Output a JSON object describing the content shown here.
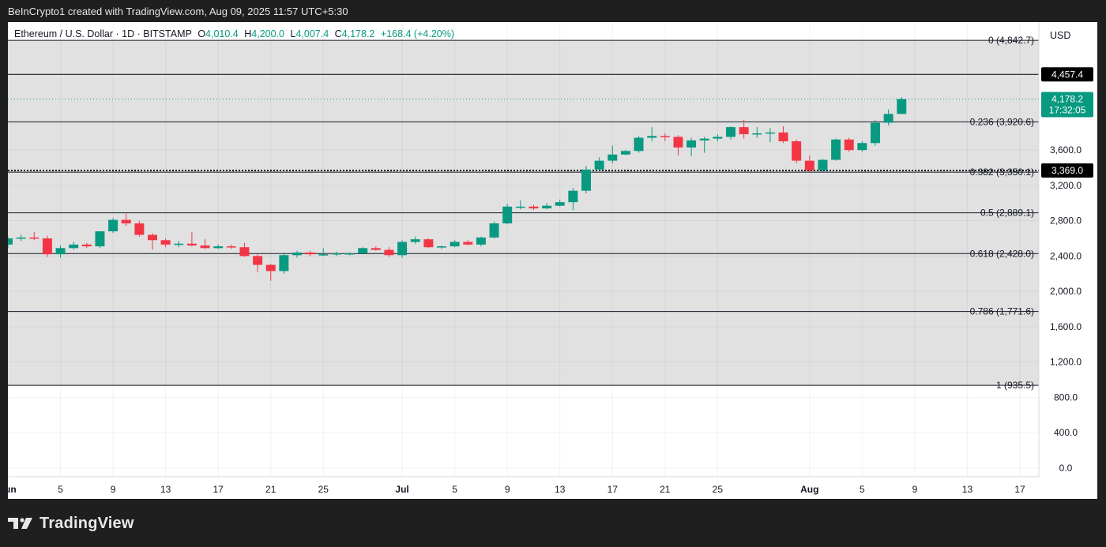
{
  "header": {
    "credit": "BeInCrypto1 created with TradingView.com, Aug 09, 2025 11:57 UTC+5:30"
  },
  "legend": {
    "symbol": "Ethereum / U.S. Dollar · 1D · BITSTAMP",
    "open_label": "O",
    "open": "4,010.4",
    "high_label": "H",
    "high": "4,200.0",
    "low_label": "L",
    "low": "4,007.4",
    "close_label": "C",
    "close": "4,178.2",
    "change": "+168.4 (+4.20%)"
  },
  "currency": "USD",
  "footer": {
    "brand": "TradingView"
  },
  "colors": {
    "up": "#089981",
    "down": "#f23645",
    "fib_zone": "#e1e1e1",
    "fib_line": "#131722",
    "price_tag": "#089981",
    "level_tag": "#000000"
  },
  "chart_data": {
    "type": "candlestick",
    "title": "Ethereum / U.S. Dollar · 1D · BITSTAMP",
    "xlabel": "",
    "ylabel": "",
    "ylim": [
      -100,
      5050
    ],
    "y_ticks": [
      {
        "value": 0,
        "label": "0.0"
      },
      {
        "value": 400,
        "label": "400.0"
      },
      {
        "value": 800,
        "label": "800.0"
      },
      {
        "value": 1200,
        "label": "1,200.0"
      },
      {
        "value": 1600,
        "label": "1,600.0"
      },
      {
        "value": 2000,
        "label": "2,000.0"
      },
      {
        "value": 2400,
        "label": "2,400.0"
      },
      {
        "value": 2800,
        "label": "2,800.0"
      },
      {
        "value": 3200,
        "label": "3,200.0"
      },
      {
        "value": 3600,
        "label": "3,600.0"
      }
    ],
    "x_start_date": "2025-06-01",
    "x_end_date": "2025-08-17",
    "x_ticks": [
      {
        "date": "2025-06-01",
        "label": "Jun"
      },
      {
        "date": "2025-06-05",
        "label": "5"
      },
      {
        "date": "2025-06-09",
        "label": "9"
      },
      {
        "date": "2025-06-13",
        "label": "13"
      },
      {
        "date": "2025-06-17",
        "label": "17"
      },
      {
        "date": "2025-06-21",
        "label": "21"
      },
      {
        "date": "2025-06-25",
        "label": "25"
      },
      {
        "date": "2025-07-01",
        "label": "Jul"
      },
      {
        "date": "2025-07-05",
        "label": "5"
      },
      {
        "date": "2025-07-09",
        "label": "9"
      },
      {
        "date": "2025-07-13",
        "label": "13"
      },
      {
        "date": "2025-07-17",
        "label": "17"
      },
      {
        "date": "2025-07-21",
        "label": "21"
      },
      {
        "date": "2025-07-25",
        "label": "25"
      },
      {
        "date": "2025-08-01",
        "label": "Aug"
      },
      {
        "date": "2025-08-05",
        "label": "5"
      },
      {
        "date": "2025-08-09",
        "label": "9"
      },
      {
        "date": "2025-08-13",
        "label": "13"
      },
      {
        "date": "2025-08-17",
        "label": "17"
      }
    ],
    "fib_levels": [
      {
        "ratio": "0",
        "value": 4842.7,
        "label": "0 (4,842.7)"
      },
      {
        "ratio": "0.236",
        "value": 3920.6,
        "label": "0.236 (3,920.6)"
      },
      {
        "ratio": "0.382",
        "value": 3350.1,
        "label": "0.382 (3,350.1)"
      },
      {
        "ratio": "0.5",
        "value": 2889.1,
        "label": "0.5 (2,889.1)"
      },
      {
        "ratio": "0.618",
        "value": 2428.0,
        "label": "0.618 (2,428.0)"
      },
      {
        "ratio": "0.786",
        "value": 1771.6,
        "label": "0.786 (1,771.6)"
      },
      {
        "ratio": "1",
        "value": 935.5,
        "label": "1 (935.5)"
      }
    ],
    "horizontal_levels": [
      {
        "value": 4457.4,
        "label": "4,457.4",
        "style": "solid"
      },
      {
        "value": 3369.0,
        "label": "3,369.0",
        "style": "dotted"
      }
    ],
    "last_price": {
      "value": 4178.2,
      "label": "4,178.2",
      "countdown": "17:32:05"
    },
    "candles": [
      {
        "date": "2025-05-31",
        "o": 2530,
        "h": 2560,
        "l": 2480,
        "c": 2530
      },
      {
        "date": "2025-06-01",
        "o": 2530,
        "h": 2620,
        "l": 2490,
        "c": 2600
      },
      {
        "date": "2025-06-02",
        "o": 2600,
        "h": 2640,
        "l": 2570,
        "c": 2610
      },
      {
        "date": "2025-06-03",
        "o": 2610,
        "h": 2670,
        "l": 2580,
        "c": 2600
      },
      {
        "date": "2025-06-04",
        "o": 2600,
        "h": 2630,
        "l": 2390,
        "c": 2420
      },
      {
        "date": "2025-06-05",
        "o": 2420,
        "h": 2520,
        "l": 2380,
        "c": 2490
      },
      {
        "date": "2025-06-06",
        "o": 2490,
        "h": 2560,
        "l": 2470,
        "c": 2530
      },
      {
        "date": "2025-06-07",
        "o": 2530,
        "h": 2550,
        "l": 2490,
        "c": 2510
      },
      {
        "date": "2025-06-08",
        "o": 2510,
        "h": 2680,
        "l": 2490,
        "c": 2680
      },
      {
        "date": "2025-06-09",
        "o": 2680,
        "h": 2830,
        "l": 2660,
        "c": 2810
      },
      {
        "date": "2025-06-10",
        "o": 2810,
        "h": 2880,
        "l": 2740,
        "c": 2770
      },
      {
        "date": "2025-06-11",
        "o": 2770,
        "h": 2800,
        "l": 2620,
        "c": 2640
      },
      {
        "date": "2025-06-12",
        "o": 2640,
        "h": 2660,
        "l": 2470,
        "c": 2580
      },
      {
        "date": "2025-06-13",
        "o": 2580,
        "h": 2600,
        "l": 2500,
        "c": 2530
      },
      {
        "date": "2025-06-14",
        "o": 2530,
        "h": 2570,
        "l": 2500,
        "c": 2540
      },
      {
        "date": "2025-06-15",
        "o": 2540,
        "h": 2670,
        "l": 2510,
        "c": 2520
      },
      {
        "date": "2025-06-16",
        "o": 2520,
        "h": 2590,
        "l": 2480,
        "c": 2490
      },
      {
        "date": "2025-06-17",
        "o": 2490,
        "h": 2530,
        "l": 2480,
        "c": 2510
      },
      {
        "date": "2025-06-18",
        "o": 2510,
        "h": 2530,
        "l": 2480,
        "c": 2500
      },
      {
        "date": "2025-06-19",
        "o": 2500,
        "h": 2550,
        "l": 2390,
        "c": 2400
      },
      {
        "date": "2025-06-20",
        "o": 2400,
        "h": 2420,
        "l": 2220,
        "c": 2300
      },
      {
        "date": "2025-06-21",
        "o": 2300,
        "h": 2310,
        "l": 2120,
        "c": 2230
      },
      {
        "date": "2025-06-22",
        "o": 2230,
        "h": 2440,
        "l": 2200,
        "c": 2410
      },
      {
        "date": "2025-06-23",
        "o": 2410,
        "h": 2460,
        "l": 2380,
        "c": 2440
      },
      {
        "date": "2025-06-24",
        "o": 2440,
        "h": 2460,
        "l": 2400,
        "c": 2420
      },
      {
        "date": "2025-06-25",
        "o": 2420,
        "h": 2490,
        "l": 2400,
        "c": 2420
      },
      {
        "date": "2025-06-26",
        "o": 2420,
        "h": 2450,
        "l": 2400,
        "c": 2430
      },
      {
        "date": "2025-06-27",
        "o": 2430,
        "h": 2440,
        "l": 2410,
        "c": 2430
      },
      {
        "date": "2025-06-28",
        "o": 2430,
        "h": 2500,
        "l": 2420,
        "c": 2490
      },
      {
        "date": "2025-06-29",
        "o": 2490,
        "h": 2510,
        "l": 2460,
        "c": 2470
      },
      {
        "date": "2025-06-30",
        "o": 2470,
        "h": 2500,
        "l": 2390,
        "c": 2410
      },
      {
        "date": "2025-07-01",
        "o": 2410,
        "h": 2580,
        "l": 2380,
        "c": 2560
      },
      {
        "date": "2025-07-02",
        "o": 2560,
        "h": 2620,
        "l": 2540,
        "c": 2590
      },
      {
        "date": "2025-07-03",
        "o": 2590,
        "h": 2600,
        "l": 2490,
        "c": 2500
      },
      {
        "date": "2025-07-04",
        "o": 2500,
        "h": 2520,
        "l": 2480,
        "c": 2510
      },
      {
        "date": "2025-07-05",
        "o": 2510,
        "h": 2580,
        "l": 2500,
        "c": 2560
      },
      {
        "date": "2025-07-06",
        "o": 2560,
        "h": 2580,
        "l": 2520,
        "c": 2530
      },
      {
        "date": "2025-07-07",
        "o": 2530,
        "h": 2620,
        "l": 2510,
        "c": 2610
      },
      {
        "date": "2025-07-08",
        "o": 2610,
        "h": 2790,
        "l": 2600,
        "c": 2770
      },
      {
        "date": "2025-07-09",
        "o": 2770,
        "h": 2990,
        "l": 2760,
        "c": 2960
      },
      {
        "date": "2025-07-10",
        "o": 2960,
        "h": 3030,
        "l": 2930,
        "c": 2960
      },
      {
        "date": "2025-07-11",
        "o": 2960,
        "h": 2980,
        "l": 2920,
        "c": 2940
      },
      {
        "date": "2025-07-12",
        "o": 2940,
        "h": 3000,
        "l": 2930,
        "c": 2970
      },
      {
        "date": "2025-07-13",
        "o": 2970,
        "h": 3040,
        "l": 2960,
        "c": 3010
      },
      {
        "date": "2025-07-14",
        "o": 3010,
        "h": 3170,
        "l": 2920,
        "c": 3140
      },
      {
        "date": "2025-07-15",
        "o": 3140,
        "h": 3420,
        "l": 3110,
        "c": 3380
      },
      {
        "date": "2025-07-16",
        "o": 3380,
        "h": 3520,
        "l": 3360,
        "c": 3480
      },
      {
        "date": "2025-07-17",
        "o": 3480,
        "h": 3650,
        "l": 3450,
        "c": 3550
      },
      {
        "date": "2025-07-18",
        "o": 3550,
        "h": 3600,
        "l": 3540,
        "c": 3590
      },
      {
        "date": "2025-07-19",
        "o": 3590,
        "h": 3760,
        "l": 3570,
        "c": 3740
      },
      {
        "date": "2025-07-20",
        "o": 3740,
        "h": 3860,
        "l": 3700,
        "c": 3760
      },
      {
        "date": "2025-07-21",
        "o": 3760,
        "h": 3790,
        "l": 3700,
        "c": 3750
      },
      {
        "date": "2025-07-22",
        "o": 3750,
        "h": 3770,
        "l": 3540,
        "c": 3630
      },
      {
        "date": "2025-07-23",
        "o": 3630,
        "h": 3740,
        "l": 3530,
        "c": 3710
      },
      {
        "date": "2025-07-24",
        "o": 3710,
        "h": 3750,
        "l": 3570,
        "c": 3730
      },
      {
        "date": "2025-07-25",
        "o": 3730,
        "h": 3780,
        "l": 3700,
        "c": 3750
      },
      {
        "date": "2025-07-26",
        "o": 3750,
        "h": 3870,
        "l": 3720,
        "c": 3860
      },
      {
        "date": "2025-07-27",
        "o": 3860,
        "h": 3940,
        "l": 3730,
        "c": 3780
      },
      {
        "date": "2025-07-28",
        "o": 3780,
        "h": 3860,
        "l": 3740,
        "c": 3790
      },
      {
        "date": "2025-07-29",
        "o": 3790,
        "h": 3850,
        "l": 3690,
        "c": 3800
      },
      {
        "date": "2025-07-30",
        "o": 3800,
        "h": 3870,
        "l": 3680,
        "c": 3700
      },
      {
        "date": "2025-07-31",
        "o": 3700,
        "h": 3720,
        "l": 3450,
        "c": 3480
      },
      {
        "date": "2025-08-01",
        "o": 3480,
        "h": 3540,
        "l": 3360,
        "c": 3370
      },
      {
        "date": "2025-08-02",
        "o": 3370,
        "h": 3500,
        "l": 3360,
        "c": 3490
      },
      {
        "date": "2025-08-03",
        "o": 3490,
        "h": 3730,
        "l": 3480,
        "c": 3720
      },
      {
        "date": "2025-08-04",
        "o": 3720,
        "h": 3740,
        "l": 3580,
        "c": 3600
      },
      {
        "date": "2025-08-05",
        "o": 3600,
        "h": 3700,
        "l": 3580,
        "c": 3680
      },
      {
        "date": "2025-08-06",
        "o": 3680,
        "h": 3940,
        "l": 3650,
        "c": 3910
      },
      {
        "date": "2025-08-07",
        "o": 3910,
        "h": 4060,
        "l": 3880,
        "c": 4010
      },
      {
        "date": "2025-08-08",
        "o": 4010,
        "h": 4200,
        "l": 4007,
        "c": 4178
      }
    ]
  }
}
